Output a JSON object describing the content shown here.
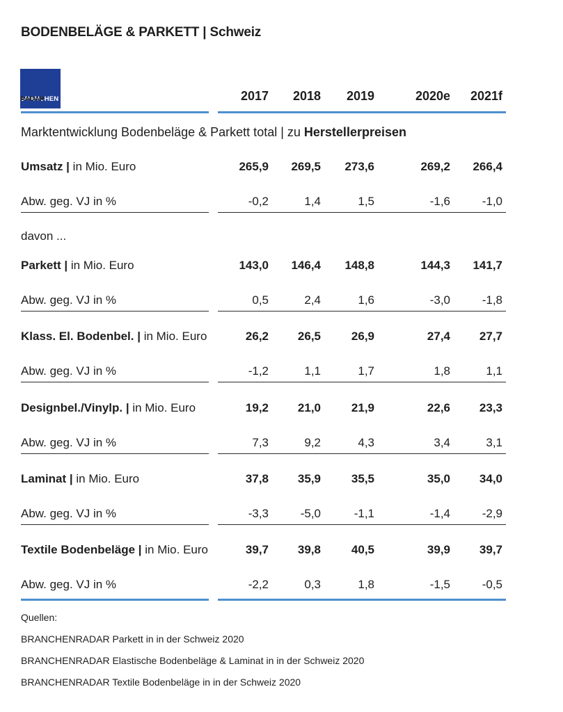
{
  "title": {
    "main": "BODENBELÄGE & PARKETT",
    "sep": "|",
    "region": "Schweiz"
  },
  "logo": {
    "text_light": "BRANCHEN",
    "text_dark": "RADAR"
  },
  "years": [
    "2017",
    "2018",
    "2019",
    "2020e",
    "2021f"
  ],
  "subtitle": {
    "normal": "Marktentwicklung Bodenbeläge & Parkett total | zu ",
    "bold": "Herstellerpreisen"
  },
  "davon": "davon ...",
  "rows": [
    {
      "label": "Umsatz |",
      "unit": " in Mio. Euro",
      "values": [
        "265,9",
        "269,5",
        "273,6",
        "269,2",
        "266,4"
      ],
      "chg_label": "Abw. geg. VJ in %",
      "chg": [
        "-0,2",
        "1,4",
        "1,5",
        "-1,6",
        "-1,0"
      ]
    },
    {
      "label": "Parkett |",
      "unit": " in Mio. Euro",
      "values": [
        "143,0",
        "146,4",
        "148,8",
        "144,3",
        "141,7"
      ],
      "chg_label": "Abw. geg. VJ in %",
      "chg": [
        "0,5",
        "2,4",
        "1,6",
        "-3,0",
        "-1,8"
      ]
    },
    {
      "label": "Klass. El. Bodenbel. |",
      "unit": " in Mio. Euro",
      "values": [
        "26,2",
        "26,5",
        "26,9",
        "27,4",
        "27,7"
      ],
      "chg_label": "Abw. geg. VJ in %",
      "chg": [
        "-1,2",
        "1,1",
        "1,7",
        "1,8",
        "1,1"
      ]
    },
    {
      "label": "Designbel./Vinylp. |",
      "unit": " in Mio. Euro",
      "values": [
        "19,2",
        "21,0",
        "21,9",
        "22,6",
        "23,3"
      ],
      "chg_label": "Abw. geg. VJ in %",
      "chg": [
        "7,3",
        "9,2",
        "4,3",
        "3,4",
        "3,1"
      ]
    },
    {
      "label": "Laminat |",
      "unit": " in Mio. Euro",
      "values": [
        "37,8",
        "35,9",
        "35,5",
        "35,0",
        "34,0"
      ],
      "chg_label": "Abw. geg. VJ in %",
      "chg": [
        "-3,3",
        "-5,0",
        "-1,1",
        "-1,4",
        "-2,9"
      ]
    },
    {
      "label": "Textile Bodenbeläge |",
      "unit": " in Mio. Euro",
      "values": [
        "39,7",
        "39,8",
        "40,5",
        "39,9",
        "39,7"
      ],
      "chg_label": "Abw. geg. VJ in %",
      "chg": [
        "-2,2",
        "0,3",
        "1,8",
        "-1,5",
        "-0,5"
      ]
    }
  ],
  "sources": {
    "heading": "Quellen:",
    "items": [
      "BRANCHENRADAR Parkett in in der Schweiz 2020",
      "BRANCHENRADAR Elastische Bodenbeläge & Laminat in in der Schweiz 2020",
      "BRANCHENRADAR Textile Bodenbeläge in in der Schweiz 2020"
    ]
  },
  "colors": {
    "accent_rule": "#4f8fce",
    "logo_bg": "#1f3f97"
  }
}
